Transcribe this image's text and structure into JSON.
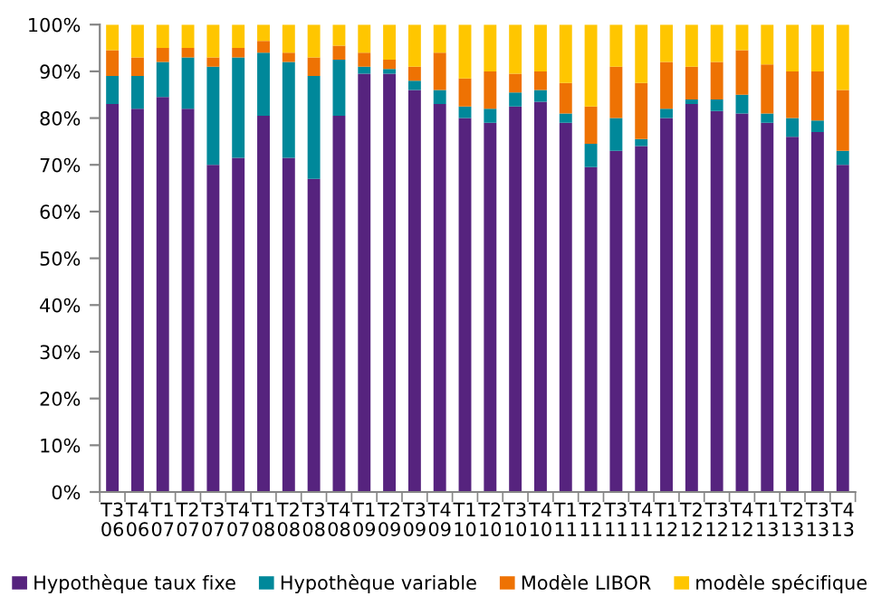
{
  "chart_data": {
    "type": "bar",
    "stacked": true,
    "categories": [
      "T3\n06",
      "T4\n06",
      "T1\n07",
      "T2\n07",
      "T3\n07",
      "T4\n07",
      "T1\n08",
      "T2\n08",
      "T3\n08",
      "T4\n08",
      "T1\n09",
      "T2\n09",
      "T3\n09",
      "T4\n09",
      "T1\n10",
      "T2\n10",
      "T3\n10",
      "T4\n10",
      "T1\n11",
      "T2\n11",
      "T3\n11",
      "T4\n11",
      "T1\n12",
      "T2\n12",
      "T3\n12",
      "T4\n12",
      "T1\n13",
      "T2\n13",
      "T3\n13",
      "T4\n13"
    ],
    "series": [
      {
        "name": "Hypothèque taux fixe",
        "color": "#56237e",
        "values": [
          83,
          82,
          84.5,
          82,
          70,
          71.5,
          80.5,
          71.5,
          67,
          80.5,
          89.5,
          89.5,
          86,
          83,
          80,
          79,
          82.5,
          83.5,
          79,
          69.5,
          73,
          74,
          80,
          83,
          81.5,
          81,
          79,
          76,
          77,
          70
        ]
      },
      {
        "name": "Hypothèque variable",
        "color": "#00889a",
        "values": [
          6,
          7,
          7.5,
          11,
          21,
          21.5,
          13.5,
          20.5,
          22,
          12,
          1.5,
          1,
          2,
          3,
          2.5,
          3,
          3,
          2.5,
          2,
          5,
          7,
          1.5,
          2,
          1,
          2.5,
          4,
          2,
          4,
          2.5,
          3
        ]
      },
      {
        "name": "Modèle LIBOR",
        "color": "#ee7203",
        "values": [
          5.5,
          4,
          3,
          2,
          2,
          2,
          2.5,
          2,
          4,
          3,
          3,
          2,
          3,
          8,
          6,
          8,
          4,
          4,
          6.5,
          8,
          11,
          12,
          10,
          7,
          8,
          9.5,
          10.5,
          10,
          10.5,
          13
        ]
      },
      {
        "name": "modèle spécifique",
        "color": "#ffc600",
        "values": [
          5.5,
          7,
          5,
          5,
          7,
          5,
          3.5,
          6,
          7,
          4.5,
          6,
          7.5,
          9,
          6,
          11.5,
          10,
          10.5,
          10,
          12.5,
          17.5,
          9,
          12.5,
          8,
          9,
          8,
          5.5,
          8.5,
          10,
          10,
          14
        ]
      }
    ],
    "ylim": [
      0,
      100
    ],
    "yticks": [
      {
        "value": 0,
        "label": "0%"
      },
      {
        "value": 10,
        "label": "10%"
      },
      {
        "value": 20,
        "label": "20%"
      },
      {
        "value": 30,
        "label": "30%"
      },
      {
        "value": 40,
        "label": "40%"
      },
      {
        "value": 50,
        "label": "50%"
      },
      {
        "value": 60,
        "label": "60%"
      },
      {
        "value": 70,
        "label": "70%"
      },
      {
        "value": 80,
        "label": "80%"
      },
      {
        "value": 90,
        "label": "90%"
      },
      {
        "value": 100,
        "label": "100%"
      }
    ],
    "legend": "bottom"
  }
}
